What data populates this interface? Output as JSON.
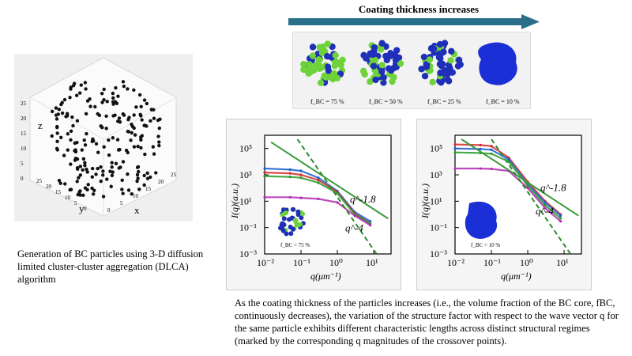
{
  "top_arrow": {
    "label": "Coating thickness increases"
  },
  "particles": [
    {
      "label": "f_BC = 75 %",
      "f": "75 %"
    },
    {
      "label": "f_BC = 50 %",
      "f": "50 %"
    },
    {
      "label": "f_BC = 25 %",
      "f": "25 %"
    },
    {
      "label": "f_BC = 10 %",
      "f": "10 %"
    }
  ],
  "plot3d": {
    "axis_z": "z",
    "axis_y": "y",
    "axis_x": "x",
    "z_ticks": [
      "0",
      "5",
      "10",
      "15",
      "20",
      "25"
    ],
    "y_ticks": [
      "25",
      "20",
      "15",
      "10",
      "5",
      "0"
    ],
    "x_ticks": [
      "0",
      "5",
      "10",
      "15",
      "20",
      "25"
    ]
  },
  "caption_left": "Generation of BC particles using 3-D diffusion limited cluster-cluster aggregation (DLCA) algorithm",
  "caption_bottom": "As the coating thickness of the particles increases (i.e., the volume fraction of the BC core, fBC, continuously decreases), the variation of the structure factor with respect to the wave vector q for the same particle exhibits different characteristic lengths across distinct structural regimes (marked by the corresponding q magnitudes of the crossover points).",
  "chart_data": [
    {
      "type": "line",
      "xlabel": "q(μm⁻¹)",
      "ylabel": "I(q)(a.u.)",
      "xscale": "log",
      "yscale": "log",
      "xlim": [
        0.01,
        30
      ],
      "ylim": [
        0.001,
        1000000
      ],
      "x_ticks": [
        "10⁻²",
        "10⁻¹",
        "10⁰",
        "10¹"
      ],
      "y_ticks": [
        "10⁵",
        "10³",
        "10¹",
        "10⁻¹",
        "10⁻³"
      ],
      "annotations": [
        "q^-1.8",
        "q^-4"
      ],
      "inset_label": "f_BC = 75 %",
      "series": [
        {
          "color": "#1a5fd0",
          "x": [
            0.01,
            0.05,
            0.1,
            0.3,
            1,
            3,
            8
          ],
          "y": [
            3000,
            2500,
            2000,
            600,
            60,
            1.5,
            0.3
          ]
        },
        {
          "color": "#d42a2a",
          "x": [
            0.01,
            0.05,
            0.1,
            0.3,
            1,
            3,
            8
          ],
          "y": [
            1500,
            1300,
            1000,
            400,
            50,
            1.2,
            0.2
          ]
        },
        {
          "color": "#2a9a2a",
          "x": [
            0.01,
            0.05,
            0.1,
            0.3,
            1,
            3,
            8
          ],
          "y": [
            800,
            700,
            600,
            250,
            40,
            1,
            0.2
          ]
        },
        {
          "color": "#b02ab0",
          "x": [
            0.01,
            0.05,
            0.1,
            0.3,
            1,
            3,
            8
          ],
          "y": [
            20,
            20,
            18,
            15,
            8,
            0.8,
            0.15
          ]
        }
      ],
      "guides": [
        {
          "slope_label": "q^-1.8",
          "style": "solid",
          "color": "#3a9a3a"
        },
        {
          "slope_label": "q^-4",
          "style": "dashed",
          "color": "#2a8a2a"
        }
      ]
    },
    {
      "type": "line",
      "xlabel": "q(μm⁻¹)",
      "ylabel": "I(q)(a.u.)",
      "xscale": "log",
      "yscale": "log",
      "xlim": [
        0.01,
        30
      ],
      "ylim": [
        0.001,
        1000000
      ],
      "x_ticks": [
        "10⁻²",
        "10⁻¹",
        "10⁰",
        "10¹"
      ],
      "y_ticks": [
        "10⁵",
        "10³",
        "10¹",
        "10⁻¹",
        "10⁻³"
      ],
      "annotations": [
        "q^-1.8",
        "q^-4"
      ],
      "inset_label": "f_BC = 10 %",
      "series": [
        {
          "color": "#d42a2a",
          "x": [
            0.01,
            0.05,
            0.1,
            0.3,
            1,
            3,
            8
          ],
          "y": [
            200000,
            180000,
            150000,
            20000,
            300,
            10,
            1
          ]
        },
        {
          "color": "#1a5fd0",
          "x": [
            0.01,
            0.05,
            0.1,
            0.3,
            1,
            3,
            8
          ],
          "y": [
            100000,
            90000,
            80000,
            15000,
            200,
            8,
            0.8
          ]
        },
        {
          "color": "#2a9a2a",
          "x": [
            0.01,
            0.05,
            0.1,
            0.3,
            1,
            3,
            8
          ],
          "y": [
            50000,
            45000,
            40000,
            10000,
            150,
            5,
            0.5
          ]
        },
        {
          "color": "#b02ab0",
          "x": [
            0.01,
            0.05,
            0.1,
            0.3,
            1,
            3,
            8
          ],
          "y": [
            3000,
            3000,
            2800,
            2000,
            100,
            3,
            0.3
          ]
        }
      ],
      "guides": [
        {
          "slope_label": "q^-1.8",
          "style": "solid",
          "color": "#3a9a3a"
        },
        {
          "slope_label": "q^-4",
          "style": "dashed",
          "color": "#2a8a2a"
        }
      ]
    }
  ]
}
